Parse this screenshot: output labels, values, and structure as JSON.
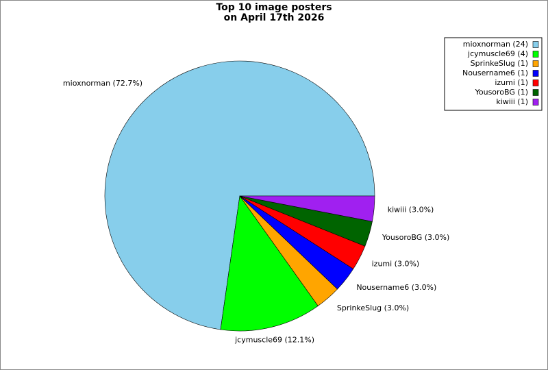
{
  "chart_data": {
    "type": "pie",
    "title": [
      "Top 10 image posters",
      "on April 17th 2026"
    ],
    "categories": [
      "mioxnorman",
      "jcymuscle69",
      "SprinkeSlug",
      "Nousername6",
      "izumi",
      "YousoroBG",
      "kiwiii"
    ],
    "values": [
      24,
      4,
      1,
      1,
      1,
      1,
      1
    ],
    "slice_labels": [
      "mioxnorman (72.7%)",
      "jcymuscle69 (12.1%)",
      "SprinkeSlug (3.0%)",
      "Nousername6 (3.0%)",
      "izumi (3.0%)",
      "YousoroBG (3.0%)",
      "kiwiii (3.0%)"
    ],
    "legend_labels": [
      "mioxnorman (24)",
      "jcymuscle69 (4)",
      "SprinkeSlug (1)",
      "Nousername6 (1)",
      "izumi (1)",
      "YousoroBG (1)",
      "kiwiii (1)"
    ],
    "colors": [
      "#87ceeb",
      "#00ff00",
      "#ffa500",
      "#0000ff",
      "#ff0000",
      "#006400",
      "#a020f0"
    ],
    "legend": "upper right"
  }
}
